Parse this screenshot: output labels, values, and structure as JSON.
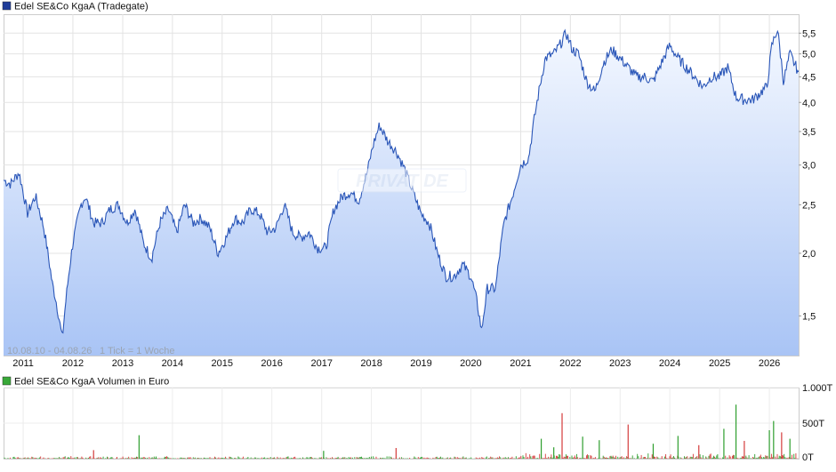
{
  "chart_data": [
    {
      "type": "line",
      "legend_label": "Edel SE&Co KgaA (Tradegate)",
      "legend_color": "#1f3d99",
      "line_color": "#2a56b8",
      "area_fill_top": "#f4f8ff",
      "area_fill_bottom": "#a9c4f5",
      "y_scale": "log",
      "ylim": [
        1.25,
        6.0
      ],
      "y_ticks": [
        1.5,
        2.0,
        2.5,
        3.0,
        3.5,
        4.0,
        4.5,
        5.0,
        5.5
      ],
      "y_tick_labels": [
        "1,5",
        "2,0",
        "2,5",
        "3,0",
        "3,5",
        "4,0",
        "4,5",
        "5,0",
        "5,5"
      ],
      "x_range": [
        "2010-08-10",
        "2026-08-04"
      ],
      "x_ticks": [
        {
          "label": "2011",
          "date": "2011-01-01"
        },
        {
          "label": "2012",
          "date": "2012-01-01"
        },
        {
          "label": "2013",
          "date": "2013-01-01"
        },
        {
          "label": "2014",
          "date": "2014-01-01"
        },
        {
          "label": "2015",
          "date": "2015-01-01"
        },
        {
          "label": "2016",
          "date": "2016-01-01"
        },
        {
          "label": "2017",
          "date": "2017-01-01"
        },
        {
          "label": "2018",
          "date": "2018-01-01"
        },
        {
          "label": "2019",
          "date": "2019-01-01"
        },
        {
          "label": "2020",
          "date": "2020-01-01"
        },
        {
          "label": "2021",
          "date": "2021-01-01"
        },
        {
          "label": "2022",
          "date": "2022-01-01"
        },
        {
          "label": "2023",
          "date": "2023-01-01"
        },
        {
          "label": "2024",
          "date": "2024-01-01"
        },
        {
          "label": "2025",
          "date": "2025-01-01"
        },
        {
          "label": "2026",
          "date": "2026-01-01"
        }
      ],
      "range_note": "10.08.10 - 04.08.26",
      "tick_note": "1 Tick = 1 Woche",
      "watermark": "PRIVAT DE",
      "grid": true,
      "series": [
        {
          "x": [
            "2010-08-10",
            "2010-10-01",
            "2010-12-01",
            "2011-02-01",
            "2011-04-01",
            "2011-06-01",
            "2011-08-01",
            "2011-09-01",
            "2011-10-15",
            "2011-11-20",
            "2012-01-01",
            "2012-03-01",
            "2012-04-01",
            "2012-06-01",
            "2012-08-01",
            "2012-10-01",
            "2012-12-01",
            "2013-02-01",
            "2013-04-01",
            "2013-06-01",
            "2013-08-01",
            "2013-10-01",
            "2013-12-01",
            "2014-02-01",
            "2014-04-01",
            "2014-06-01",
            "2014-08-01",
            "2014-10-01",
            "2014-12-01",
            "2015-02-01",
            "2015-04-01",
            "2015-06-01",
            "2015-08-01",
            "2015-10-01",
            "2015-12-01",
            "2016-02-01",
            "2016-04-01",
            "2016-06-01",
            "2016-08-01",
            "2016-10-01",
            "2016-12-01",
            "2017-02-01",
            "2017-04-01",
            "2017-06-01",
            "2017-08-01",
            "2017-10-01",
            "2017-12-01",
            "2018-01-15",
            "2018-03-01",
            "2018-05-01",
            "2018-07-01",
            "2018-09-01",
            "2018-11-01",
            "2019-01-01",
            "2019-03-01",
            "2019-05-01",
            "2019-07-01",
            "2019-09-01",
            "2019-11-01",
            "2020-01-01",
            "2020-02-15",
            "2020-03-20",
            "2020-05-01",
            "2020-07-01",
            "2020-09-01",
            "2020-11-01",
            "2021-01-01",
            "2021-03-01",
            "2021-05-01",
            "2021-07-01",
            "2021-09-01",
            "2021-10-15",
            "2021-12-01",
            "2022-01-15",
            "2022-03-01",
            "2022-05-01",
            "2022-07-01",
            "2022-09-01",
            "2022-11-01",
            "2023-01-01",
            "2023-03-01",
            "2023-05-01",
            "2023-07-01",
            "2023-09-01",
            "2023-11-01",
            "2024-01-01",
            "2024-03-01",
            "2024-05-01",
            "2024-07-01",
            "2024-09-01",
            "2024-11-01",
            "2025-01-01",
            "2025-03-01",
            "2025-05-01",
            "2025-07-01",
            "2025-09-01",
            "2025-11-01",
            "2025-12-15",
            "2026-01-20",
            "2026-03-01",
            "2026-04-15",
            "2026-06-01",
            "2026-07-01",
            "2026-08-04"
          ],
          "y": [
            2.8,
            2.75,
            2.9,
            2.4,
            2.6,
            2.25,
            1.75,
            1.6,
            1.35,
            1.7,
            2.1,
            2.5,
            2.6,
            2.3,
            2.3,
            2.45,
            2.5,
            2.3,
            2.45,
            2.1,
            1.95,
            2.3,
            2.45,
            2.2,
            2.5,
            2.3,
            2.35,
            2.25,
            2.0,
            2.15,
            2.35,
            2.3,
            2.45,
            2.4,
            2.2,
            2.25,
            2.5,
            2.2,
            2.15,
            2.2,
            2.05,
            2.05,
            2.45,
            2.6,
            2.65,
            2.55,
            2.9,
            3.3,
            3.6,
            3.35,
            3.2,
            2.95,
            2.65,
            2.4,
            2.3,
            2.0,
            1.8,
            1.8,
            1.9,
            1.8,
            1.6,
            1.4,
            1.7,
            1.7,
            2.3,
            2.6,
            3.0,
            3.1,
            4.0,
            4.9,
            5.0,
            5.2,
            5.5,
            5.1,
            5.0,
            4.4,
            4.2,
            4.8,
            5.1,
            4.9,
            4.7,
            4.5,
            4.5,
            4.4,
            4.8,
            5.2,
            4.9,
            4.7,
            4.5,
            4.3,
            4.5,
            4.5,
            4.7,
            4.1,
            4.05,
            4.05,
            4.2,
            4.3,
            5.2,
            5.6,
            4.4,
            5.0,
            4.8,
            4.6
          ]
        }
      ]
    },
    {
      "type": "bar",
      "legend_label": "Edel SE&Co KgaA Volumen in Euro",
      "legend_color": "#38a838",
      "up_color": "#2e9e2e",
      "down_color": "#d43b3b",
      "ylim": [
        0,
        1000
      ],
      "y_ticks": [
        0,
        500,
        1000
      ],
      "y_tick_labels": [
        "0T",
        "500T",
        "1.000T"
      ],
      "spikes": [
        {
          "x": "2012-06-01",
          "value": 120
        },
        {
          "x": "2013-05-01",
          "value": 330
        },
        {
          "x": "2017-01-15",
          "value": 110
        },
        {
          "x": "2018-07-01",
          "value": 150
        },
        {
          "x": "2021-06-01",
          "value": 280
        },
        {
          "x": "2021-09-01",
          "value": 160
        },
        {
          "x": "2021-11-01",
          "value": 640
        },
        {
          "x": "2022-04-01",
          "value": 310
        },
        {
          "x": "2022-08-01",
          "value": 260
        },
        {
          "x": "2023-03-01",
          "value": 480
        },
        {
          "x": "2023-09-01",
          "value": 210
        },
        {
          "x": "2024-03-01",
          "value": 320
        },
        {
          "x": "2024-08-01",
          "value": 190
        },
        {
          "x": "2025-02-01",
          "value": 420
        },
        {
          "x": "2025-05-01",
          "value": 760
        },
        {
          "x": "2025-07-01",
          "value": 250
        },
        {
          "x": "2026-01-01",
          "value": 400
        },
        {
          "x": "2026-02-01",
          "value": 530
        },
        {
          "x": "2026-04-01",
          "value": 370
        },
        {
          "x": "2026-06-01",
          "value": 280
        }
      ]
    }
  ]
}
